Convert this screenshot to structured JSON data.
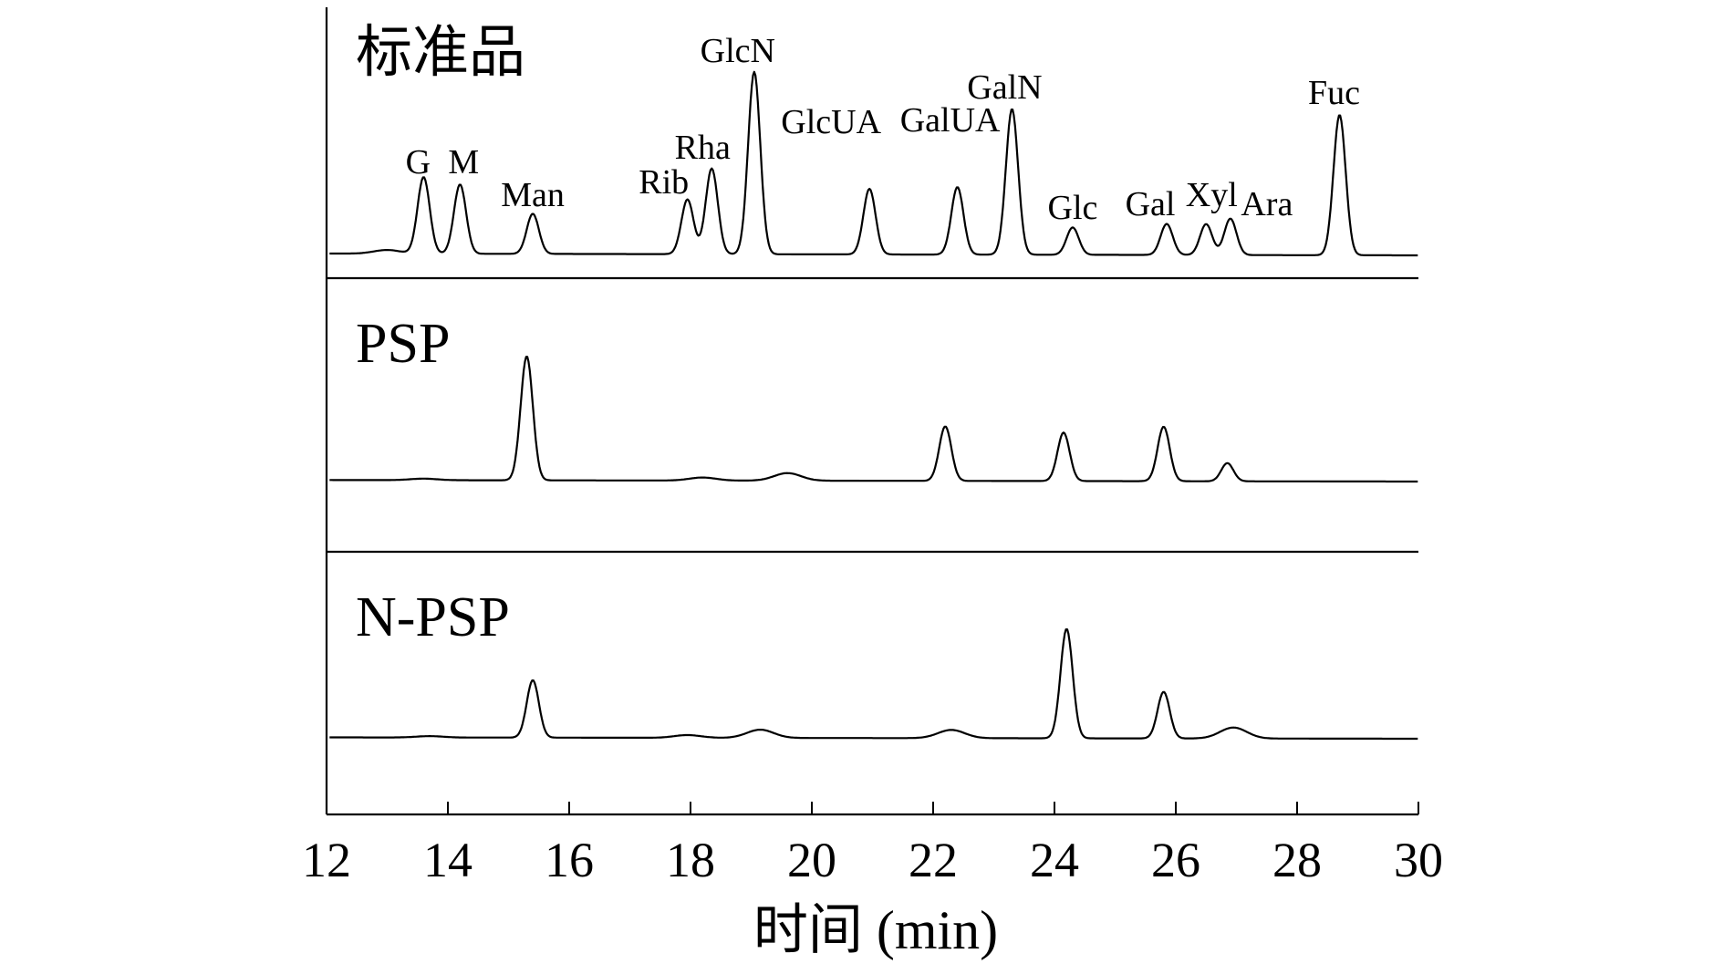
{
  "chart_data": {
    "type": "line",
    "xlabel": "时间 (min)",
    "xlim": [
      12,
      30
    ],
    "xticks": [
      12,
      14,
      16,
      18,
      20,
      22,
      24,
      26,
      28,
      30
    ],
    "grid": false,
    "panels": [
      {
        "name": "标准品",
        "baseline": 0.05,
        "peaks": [
          {
            "x": 13.0,
            "height": 0.02,
            "label": ""
          },
          {
            "x": 13.6,
            "height": 0.42,
            "label": "G"
          },
          {
            "x": 14.2,
            "height": 0.38,
            "label": "M"
          },
          {
            "x": 15.4,
            "height": 0.22,
            "label": "Man"
          },
          {
            "x": 17.95,
            "height": 0.3,
            "label": "Rib"
          },
          {
            "x": 18.35,
            "height": 0.47,
            "label": "Rha"
          },
          {
            "x": 19.05,
            "height": 1.0,
            "label": "GlcN"
          },
          {
            "x": 20.95,
            "height": 0.36,
            "label": "GlcUA"
          },
          {
            "x": 22.4,
            "height": 0.37,
            "label": "GalUA"
          },
          {
            "x": 23.3,
            "height": 0.8,
            "label": "GalN"
          },
          {
            "x": 24.3,
            "height": 0.15,
            "label": "Glc"
          },
          {
            "x": 25.85,
            "height": 0.17,
            "label": "Gal"
          },
          {
            "x": 26.5,
            "height": 0.17,
            "label": "Xyl"
          },
          {
            "x": 26.9,
            "height": 0.2,
            "label": "Ara"
          },
          {
            "x": 28.7,
            "height": 0.77,
            "label": "Fuc"
          }
        ]
      },
      {
        "name": "PSP",
        "baseline": 0.05,
        "peaks": [
          {
            "x": 13.6,
            "height": 0.01,
            "label": ""
          },
          {
            "x": 15.3,
            "height": 0.82,
            "label": ""
          },
          {
            "x": 18.2,
            "height": 0.02,
            "label": ""
          },
          {
            "x": 19.6,
            "height": 0.05,
            "label": ""
          },
          {
            "x": 22.2,
            "height": 0.36,
            "label": ""
          },
          {
            "x": 24.15,
            "height": 0.32,
            "label": ""
          },
          {
            "x": 25.8,
            "height": 0.36,
            "label": ""
          },
          {
            "x": 26.85,
            "height": 0.12,
            "label": ""
          }
        ]
      },
      {
        "name": "N-PSP",
        "baseline": 0.05,
        "peaks": [
          {
            "x": 13.7,
            "height": 0.01,
            "label": ""
          },
          {
            "x": 15.4,
            "height": 0.42,
            "label": ""
          },
          {
            "x": 17.95,
            "height": 0.02,
            "label": ""
          },
          {
            "x": 19.15,
            "height": 0.06,
            "label": ""
          },
          {
            "x": 22.3,
            "height": 0.06,
            "label": ""
          },
          {
            "x": 24.2,
            "height": 0.8,
            "label": ""
          },
          {
            "x": 25.8,
            "height": 0.34,
            "label": ""
          },
          {
            "x": 26.95,
            "height": 0.08,
            "label": ""
          }
        ]
      }
    ]
  }
}
